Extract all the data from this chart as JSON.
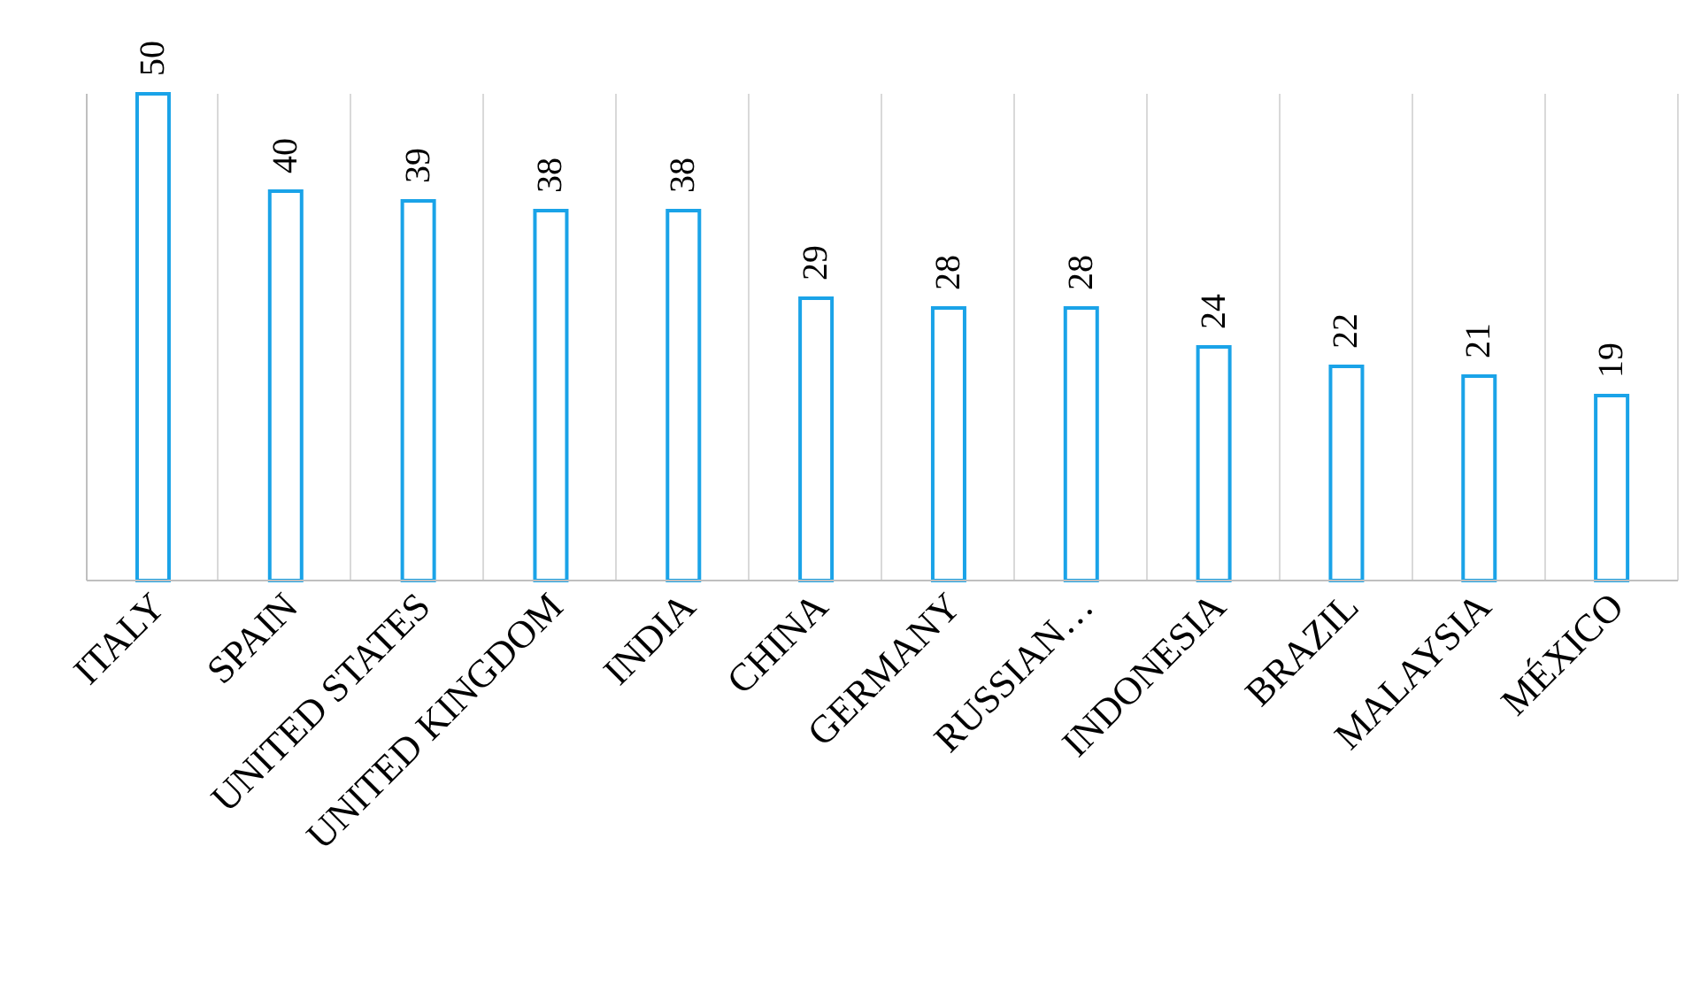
{
  "chart_data": {
    "type": "bar",
    "categories": [
      "ITALY",
      "SPAIN",
      "UNITED STATES",
      "UNITED KINGDOM",
      "INDIA",
      "CHINA",
      "GERMANY",
      "RUSSIAN…",
      "INDONESIA",
      "BRAZIL",
      "MALAYSIA",
      "MÉXICO"
    ],
    "values": [
      50,
      40,
      39,
      38,
      38,
      29,
      28,
      28,
      24,
      22,
      21,
      19
    ],
    "color": "#1aa3e8",
    "data_labels": true,
    "grid": "x"
  }
}
